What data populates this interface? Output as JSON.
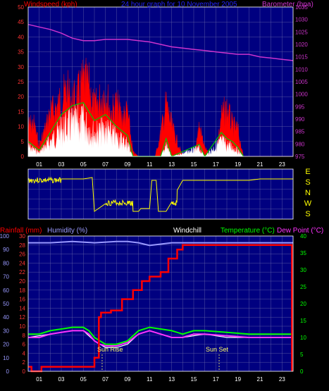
{
  "top": {
    "left_title": "Windspeed (kph)",
    "center_title": "24 hour graph for 10 November 2005",
    "right_title": "Barometer (hpa)",
    "x_ticks": [
      "01",
      "03",
      "05",
      "07",
      "09",
      "11",
      "13",
      "15",
      "17",
      "19",
      "21",
      "23"
    ],
    "y_left_ticks": [
      "0",
      "5",
      "10",
      "15",
      "20",
      "25",
      "30",
      "35",
      "40",
      "45",
      "50"
    ],
    "y_right_ticks": [
      "975",
      "980",
      "985",
      "990",
      "995",
      "1000",
      "1005",
      "1010",
      "1015",
      "1020",
      "1025",
      "1030",
      "1035"
    ]
  },
  "mid": {
    "compass_letters": [
      "E",
      "S",
      "N",
      "W",
      "S"
    ]
  },
  "bottom": {
    "rainfall_label": "Rainfall (mm)",
    "humidity_label": "Humidity (%)",
    "windchill_label": "Windchill",
    "temperature_label": "Temperature (°C)",
    "dewpoint_label": "Dew Point (°C)",
    "sunrise_label": "Sun Rise",
    "sunset_label": "Sun Set",
    "x_ticks": [
      "01",
      "03",
      "05",
      "07",
      "09",
      "11",
      "13",
      "15",
      "17",
      "19",
      "21",
      "23"
    ],
    "y_humidity_ticks": [
      "0",
      "10",
      "20",
      "30",
      "40",
      "50",
      "60",
      "70",
      "80",
      "90",
      "100"
    ],
    "y_rain_ticks": [
      "0",
      "2",
      "4",
      "6",
      "8",
      "10",
      "12",
      "14",
      "16",
      "18",
      "20",
      "22",
      "24",
      "26",
      "28",
      "30"
    ],
    "y_temp_ticks": [
      "0",
      "5",
      "10",
      "15",
      "20",
      "25",
      "30",
      "35",
      "40"
    ]
  },
  "colors": {
    "plot_bg": "#000080",
    "wind_gust": "#ff0000",
    "wind_avg": "#00cc00",
    "wind_speed": "#ffffff",
    "barometer": "#cc33cc",
    "direction": "#ffff00",
    "rainfall": "#ff0000",
    "humidity": "#9999ff",
    "temperature": "#00ff00",
    "dewpoint": "#ff33ff"
  },
  "chart_data": [
    {
      "type": "area",
      "title": "24 hour graph for 10 November 2005",
      "x_unit": "hour",
      "xlim": [
        0,
        24
      ],
      "y_left": {
        "label": "Windspeed (kph)",
        "lim": [
          0,
          50
        ]
      },
      "y_right": {
        "label": "Barometer (hpa)",
        "lim": [
          975,
          1035
        ]
      },
      "series": [
        {
          "name": "Barometer (hpa)",
          "axis": "right",
          "x": [
            0,
            1,
            2,
            3,
            4,
            5,
            6,
            7,
            8,
            9,
            10,
            11,
            12,
            13,
            14,
            15,
            16,
            17,
            18,
            19,
            20,
            21,
            22,
            23,
            24
          ],
          "values": [
            1028,
            1027,
            1026,
            1024.5,
            1022.5,
            1021.5,
            1021.5,
            1022,
            1022,
            1022,
            1021.5,
            1021,
            1020,
            1019,
            1018.5,
            1018,
            1017.5,
            1017,
            1016.5,
            1016,
            1016,
            1015,
            1014.5,
            1014,
            1013.5
          ]
        },
        {
          "name": "Windspeed (kph) gust",
          "axis": "left",
          "x": [
            0,
            0.5,
            1,
            1.5,
            2,
            2.5,
            3,
            3.5,
            4,
            4.5,
            5,
            5.5,
            6,
            6.5,
            7,
            7.5,
            8,
            8.5,
            9,
            9.5,
            10,
            11,
            11.5,
            12,
            12.5,
            13,
            14,
            15,
            15.5,
            16,
            16.5,
            17,
            17.5,
            18,
            18.5,
            19,
            19.5,
            20,
            21,
            22,
            23,
            24
          ],
          "values": [
            14,
            15,
            5,
            12,
            20,
            22,
            26,
            30,
            25,
            28,
            34,
            32,
            22,
            26,
            30,
            20,
            24,
            18,
            20,
            2,
            0,
            0,
            0,
            10,
            24,
            14,
            0,
            0,
            14,
            4,
            0,
            0,
            18,
            22,
            14,
            12,
            0,
            0,
            0,
            0,
            0,
            0
          ]
        },
        {
          "name": "Windspeed (kph) average",
          "axis": "left",
          "x": [
            0,
            1,
            2,
            3,
            4,
            5,
            6,
            7,
            8,
            9,
            9.5,
            12,
            12.5,
            13,
            15.5,
            16,
            17.5,
            18,
            18.5,
            19,
            19.5
          ],
          "values": [
            5,
            2,
            8,
            14,
            17,
            18,
            12,
            14,
            10,
            7,
            0,
            0,
            6,
            0,
            4,
            0,
            8,
            6,
            5,
            3,
            0
          ]
        }
      ]
    },
    {
      "type": "line",
      "title": "",
      "x_unit": "hour",
      "xlim": [
        0,
        24
      ],
      "series": [
        {
          "name": "Wind direction",
          "x": [
            0,
            1,
            2,
            3,
            4,
            5,
            5.8,
            6,
            7,
            8,
            9,
            9.5,
            10,
            10.2,
            11,
            11.2,
            11.6,
            11.8,
            12,
            12.5,
            13,
            13.5,
            14,
            15,
            16,
            17,
            18,
            19,
            20,
            21,
            22,
            23,
            24
          ],
          "values": [
            "N",
            "N",
            "N",
            "NW",
            "NW",
            "NW",
            "W",
            "E",
            "ES",
            "ES",
            "ES",
            "E",
            "E",
            "S",
            "S",
            "N",
            "N",
            "E",
            "E",
            "E",
            "ES",
            "SN",
            "N",
            "N",
            "N",
            "N",
            "N",
            "N",
            "N",
            "NW",
            "NW",
            "NW",
            "NW"
          ]
        }
      ]
    },
    {
      "type": "line",
      "title": "",
      "x_unit": "hour",
      "xlim": [
        0,
        24
      ],
      "y_left": {
        "label": "Humidity (%)",
        "lim": [
          0,
          100
        ]
      },
      "y_left_inner": {
        "label": "Rainfall (mm)",
        "lim": [
          0,
          30
        ]
      },
      "y_right": {
        "label": "Temperature (°C)",
        "lim": [
          0,
          40
        ]
      },
      "annotations": [
        {
          "label": "Sun Rise",
          "x": 6.7
        },
        {
          "label": "Sun Set",
          "x": 17.3
        }
      ],
      "series": [
        {
          "name": "Humidity (%)",
          "axis": "left",
          "x": [
            0,
            2,
            4,
            6,
            8,
            9,
            10,
            11,
            12,
            13,
            14,
            16,
            18,
            20,
            22,
            24
          ],
          "values": [
            95,
            95,
            96,
            95,
            96,
            96,
            95,
            93,
            94,
            95,
            95,
            95,
            95,
            95,
            95,
            95
          ]
        },
        {
          "name": "Rainfall (mm)",
          "axis": "left_inner",
          "x": [
            0,
            0.3,
            1,
            1.2,
            5.5,
            6,
            6.4,
            6.6,
            7.5,
            8.5,
            9.5,
            10.3,
            11,
            12,
            12.7,
            13.5,
            14,
            16,
            18,
            20,
            22,
            23.7,
            23.9
          ],
          "values": [
            1,
            0,
            0,
            1,
            1,
            3,
            12,
            13,
            13.5,
            16,
            18,
            20,
            21,
            22,
            25,
            27,
            28,
            28,
            28,
            28,
            28,
            28,
            0
          ]
        },
        {
          "name": "Temperature (°C)",
          "axis": "right",
          "x": [
            0,
            1,
            2,
            3,
            4,
            5,
            5.5,
            6,
            6.5,
            7,
            8,
            9,
            10,
            11,
            12,
            13,
            14,
            15,
            16,
            18,
            20,
            22,
            24
          ],
          "values": [
            11,
            11,
            12,
            12.5,
            13,
            13,
            12,
            10,
            9,
            8,
            8,
            9,
            12,
            13,
            12.5,
            12,
            11,
            12,
            12,
            11.5,
            11,
            11,
            11
          ]
        },
        {
          "name": "Dew Point (°C)",
          "axis": "right",
          "x": [
            0,
            1,
            2,
            3,
            4,
            5,
            5.5,
            6,
            6.5,
            7,
            8,
            9,
            10,
            11,
            12,
            13,
            14,
            15,
            16,
            18,
            20,
            22,
            24
          ],
          "values": [
            10,
            10,
            11,
            11.5,
            12,
            12,
            11,
            9,
            8,
            7.5,
            7.5,
            8.5,
            11,
            12,
            11,
            10,
            10,
            11,
            11,
            10.5,
            10,
            10,
            10
          ]
        },
        {
          "name": "Windchill",
          "axis": "right",
          "x": [
            0,
            2,
            4,
            5,
            6,
            7,
            8,
            9,
            10,
            11,
            12,
            13,
            14,
            16,
            18,
            20,
            22,
            24
          ],
          "values": [
            10,
            11,
            12,
            12,
            9,
            7,
            7,
            8,
            11,
            12,
            11,
            10,
            10,
            11,
            10,
            10,
            10,
            10
          ]
        }
      ]
    }
  ]
}
